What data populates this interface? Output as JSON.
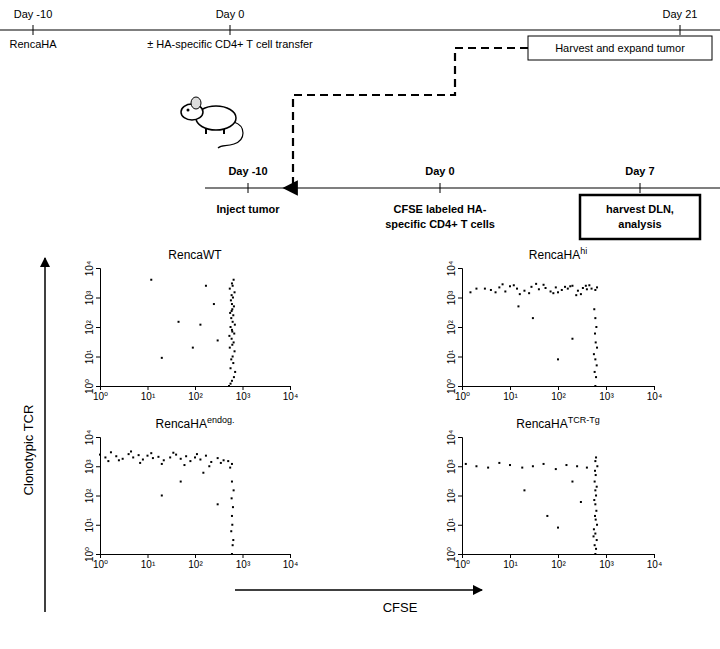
{
  "diagram": {
    "top_timeline": {
      "days": [
        "Day -10",
        "Day 0",
        "Day 21"
      ],
      "events": [
        "RencaHA",
        "± HA-specific CD4+ T cell transfer"
      ],
      "box": "Harvest and expand tumor"
    },
    "inset_timeline": {
      "days": [
        "Day -10",
        "Day 0",
        "Day 7"
      ],
      "events": [
        [
          "Inject tumor"
        ],
        [
          "CFSE labeled HA-",
          "specific CD4+ T cells"
        ],
        [
          "harvest DLN,",
          "analysis"
        ]
      ]
    }
  },
  "axes_titles": {
    "xlabel": "CFSE",
    "ylabel": "Clonotypic TCR"
  },
  "chart_data": [
    {
      "type": "scatter",
      "title": "RencaWT",
      "log": true,
      "color": "#000000",
      "marker": "square",
      "xlim": [
        1,
        10000
      ],
      "ylim": [
        1,
        10000
      ],
      "xticks": [
        {
          "value": 1,
          "label": "10⁰"
        },
        {
          "value": 10,
          "label": "10¹"
        },
        {
          "value": 100,
          "label": "10²"
        },
        {
          "value": 1000,
          "label": "10³"
        },
        {
          "value": 10000,
          "label": "10⁴"
        }
      ],
      "yticks": [
        {
          "value": 1,
          "label": "10⁰"
        },
        {
          "value": 10,
          "label": "10¹"
        },
        {
          "value": 100,
          "label": "10²"
        },
        {
          "value": 1000,
          "label": "10³"
        },
        {
          "value": 10000,
          "label": "10⁴"
        }
      ],
      "x": [
        520,
        600,
        660,
        700,
        560,
        640,
        580,
        620,
        680,
        540,
        610,
        650,
        590,
        530,
        670,
        600,
        560,
        690,
        620,
        580,
        640,
        550,
        610,
        660,
        600,
        570,
        630,
        590,
        680,
        540,
        620,
        600,
        650,
        560,
        610,
        590,
        170,
        45,
        90,
        250,
        12,
        300,
        20,
        130
      ],
      "values": [
        1,
        1.5,
        2,
        3,
        4,
        6,
        8,
        10,
        15,
        20,
        25,
        30,
        40,
        50,
        60,
        80,
        100,
        120,
        150,
        200,
        250,
        300,
        400,
        500,
        600,
        800,
        1000,
        1200,
        1500,
        2000,
        2500,
        3000,
        4000,
        1.2,
        70,
        350,
        2500,
        150,
        20,
        600,
        4000,
        35,
        9,
        120
      ]
    },
    {
      "type": "scatter",
      "title": "RencaHA",
      "title_sup": "hi",
      "log": true,
      "color": "#000000",
      "marker": "square",
      "xlim": [
        1,
        10000
      ],
      "ylim": [
        1,
        10000
      ],
      "xticks": [
        {
          "value": 1,
          "label": "10⁰"
        },
        {
          "value": 10,
          "label": "10¹"
        },
        {
          "value": 100,
          "label": "10²"
        },
        {
          "value": 1000,
          "label": "10³"
        },
        {
          "value": 10000,
          "label": "10⁴"
        }
      ],
      "yticks": [
        {
          "value": 1,
          "label": "10⁰"
        },
        {
          "value": 10,
          "label": "10¹"
        },
        {
          "value": 100,
          "label": "10²"
        },
        {
          "value": 1000,
          "label": "10³"
        },
        {
          "value": 10000,
          "label": "10⁴"
        }
      ],
      "x": [
        3,
        4,
        6,
        8,
        10,
        14,
        20,
        28,
        40,
        55,
        70,
        90,
        120,
        160,
        200,
        260,
        330,
        400,
        500,
        600,
        5,
        12,
        25,
        50,
        100,
        180,
        300,
        450,
        650,
        7,
        16,
        35,
        80,
        140,
        240,
        380,
        600,
        620,
        580,
        640,
        600,
        560,
        650,
        610,
        590,
        630,
        600,
        570,
        30,
        200,
        15,
        100,
        1.5,
        2
      ],
      "values": [
        2000,
        1800,
        2200,
        1600,
        2400,
        2000,
        1700,
        2300,
        1900,
        2100,
        1600,
        2200,
        1800,
        2000,
        2500,
        1700,
        2100,
        1900,
        2000,
        1800,
        1500,
        2600,
        1400,
        2700,
        1500,
        2400,
        1300,
        2600,
        2200,
        2800,
        1300,
        2900,
        1400,
        2300,
        1200,
        2500,
        1,
        2,
        3,
        5,
        8,
        12,
        20,
        30,
        60,
        100,
        200,
        400,
        200,
        40,
        500,
        8,
        1500,
        2000
      ]
    },
    {
      "type": "scatter",
      "title": "RencaHA",
      "title_sup": "endog.",
      "log": true,
      "color": "#000000",
      "marker": "square",
      "xlim": [
        1,
        10000
      ],
      "ylim": [
        1,
        10000
      ],
      "xticks": [
        {
          "value": 1,
          "label": "10⁰"
        },
        {
          "value": 10,
          "label": "10¹"
        },
        {
          "value": 100,
          "label": "10²"
        },
        {
          "value": 1000,
          "label": "10³"
        },
        {
          "value": 10000,
          "label": "10⁴"
        }
      ],
      "yticks": [
        {
          "value": 1,
          "label": "10⁰"
        },
        {
          "value": 10,
          "label": "10¹"
        },
        {
          "value": 100,
          "label": "10²"
        },
        {
          "value": 1000,
          "label": "10³"
        },
        {
          "value": 10000,
          "label": "10⁴"
        }
      ],
      "x": [
        1,
        1.3,
        1.7,
        2.2,
        3,
        4,
        5,
        6.5,
        8,
        10,
        13,
        17,
        22,
        30,
        40,
        50,
        65,
        80,
        100,
        130,
        170,
        220,
        300,
        400,
        500,
        600,
        1.5,
        2.5,
        4.5,
        7,
        12,
        20,
        35,
        60,
        110,
        200,
        350,
        550,
        600,
        620,
        640,
        580,
        610,
        600,
        630,
        590,
        650,
        600,
        50,
        150,
        20,
        300
      ],
      "values": [
        2500,
        2000,
        3000,
        2200,
        1800,
        2600,
        2000,
        2400,
        1700,
        2300,
        1900,
        2100,
        1600,
        2000,
        2500,
        1800,
        2200,
        1500,
        2000,
        1700,
        2300,
        1400,
        1900,
        1600,
        1500,
        1200,
        1500,
        1600,
        3200,
        1300,
        2800,
        1200,
        2900,
        1100,
        2600,
        1000,
        1300,
        900,
        1,
        2,
        3,
        6,
        10,
        20,
        40,
        80,
        150,
        300,
        300,
        600,
        100,
        50
      ]
    },
    {
      "type": "scatter",
      "title": "RencaHA",
      "title_sup": "TCR-Tg",
      "log": true,
      "color": "#000000",
      "marker": "square",
      "xlim": [
        1,
        10000
      ],
      "ylim": [
        1,
        10000
      ],
      "xticks": [
        {
          "value": 1,
          "label": "10⁰"
        },
        {
          "value": 10,
          "label": "10¹"
        },
        {
          "value": 100,
          "label": "10²"
        },
        {
          "value": 1000,
          "label": "10³"
        },
        {
          "value": 10000,
          "label": "10⁴"
        }
      ],
      "yticks": [
        {
          "value": 1,
          "label": "10⁰"
        },
        {
          "value": 10,
          "label": "10¹"
        },
        {
          "value": 100,
          "label": "10²"
        },
        {
          "value": 1000,
          "label": "10³"
        },
        {
          "value": 10000,
          "label": "10⁴"
        }
      ],
      "x": [
        600,
        620,
        580,
        640,
        600,
        560,
        650,
        610,
        590,
        630,
        600,
        570,
        620,
        600,
        640,
        580,
        610,
        590,
        660,
        600,
        620,
        550,
        1.2,
        2,
        3.5,
        6,
        10,
        18,
        30,
        50,
        90,
        150,
        250,
        400,
        60,
        200,
        300,
        100,
        20
      ],
      "values": [
        1,
        1.5,
        2,
        3,
        5,
        7,
        10,
        15,
        20,
        30,
        50,
        70,
        100,
        150,
        200,
        300,
        500,
        700,
        1000,
        1500,
        2000,
        4,
        1200,
        1000,
        900,
        1300,
        1100,
        900,
        1000,
        1200,
        800,
        1100,
        1000,
        900,
        20,
        300,
        60,
        8,
        150
      ]
    }
  ]
}
